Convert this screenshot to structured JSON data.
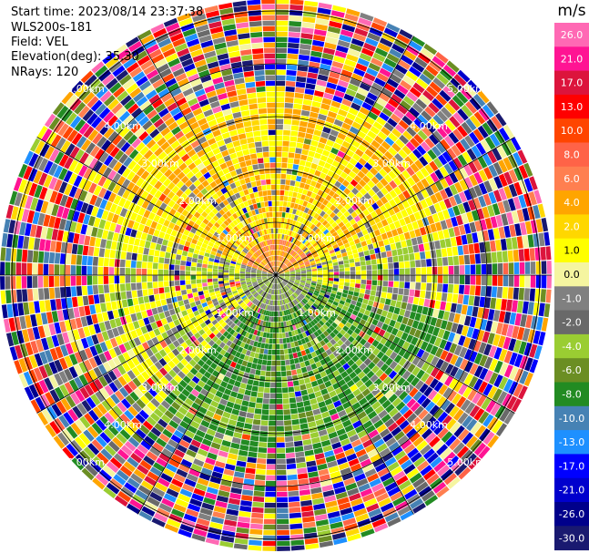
{
  "header": {
    "start_time": "Start time: 2023/08/14 23:37:38",
    "instrument": "WLS200s-181",
    "field": "Field: VEL",
    "elevation": "Elevation(deg): 35.30",
    "nrays": "NRays: 120"
  },
  "chart_data": {
    "type": "heatmap",
    "projection": "polar-ppi",
    "field": "VEL",
    "units": "m/s",
    "nrays": 120,
    "range_rings_km": [
      1,
      2,
      3,
      4,
      5
    ],
    "range_labels": [
      "1.00km",
      "2.00km",
      "3.00km",
      "4.00km",
      "5.00km"
    ],
    "azimuth_spokes_deg": [
      0,
      30,
      60,
      90,
      120,
      150,
      180,
      210,
      240,
      270,
      300,
      330
    ],
    "colorbar": {
      "label": "m/s",
      "ticks": [
        "26.0",
        "21.0",
        "17.0",
        "13.0",
        "10.0",
        "8.0",
        "6.0",
        "4.0",
        "2.0",
        "1.0",
        "0.0",
        "-1.0",
        "-2.0",
        "-4.0",
        "-6.0",
        "-8.0",
        "-10.0",
        "-13.0",
        "-17.0",
        "-21.0",
        "-26.0",
        "-30.0"
      ],
      "colors": [
        "#ff69b4",
        "#ff1493",
        "#dc143c",
        "#ff0000",
        "#ff4500",
        "#ff6347",
        "#ff7f50",
        "#ffa500",
        "#ffd700",
        "#ffff00",
        "#f5f5a0",
        "#808080",
        "#696969",
        "#9acd32",
        "#6b8e23",
        "#228b22",
        "#4682b4",
        "#1e90ff",
        "#0000ff",
        "#0000cd",
        "#00008b",
        "#191970"
      ]
    }
  }
}
